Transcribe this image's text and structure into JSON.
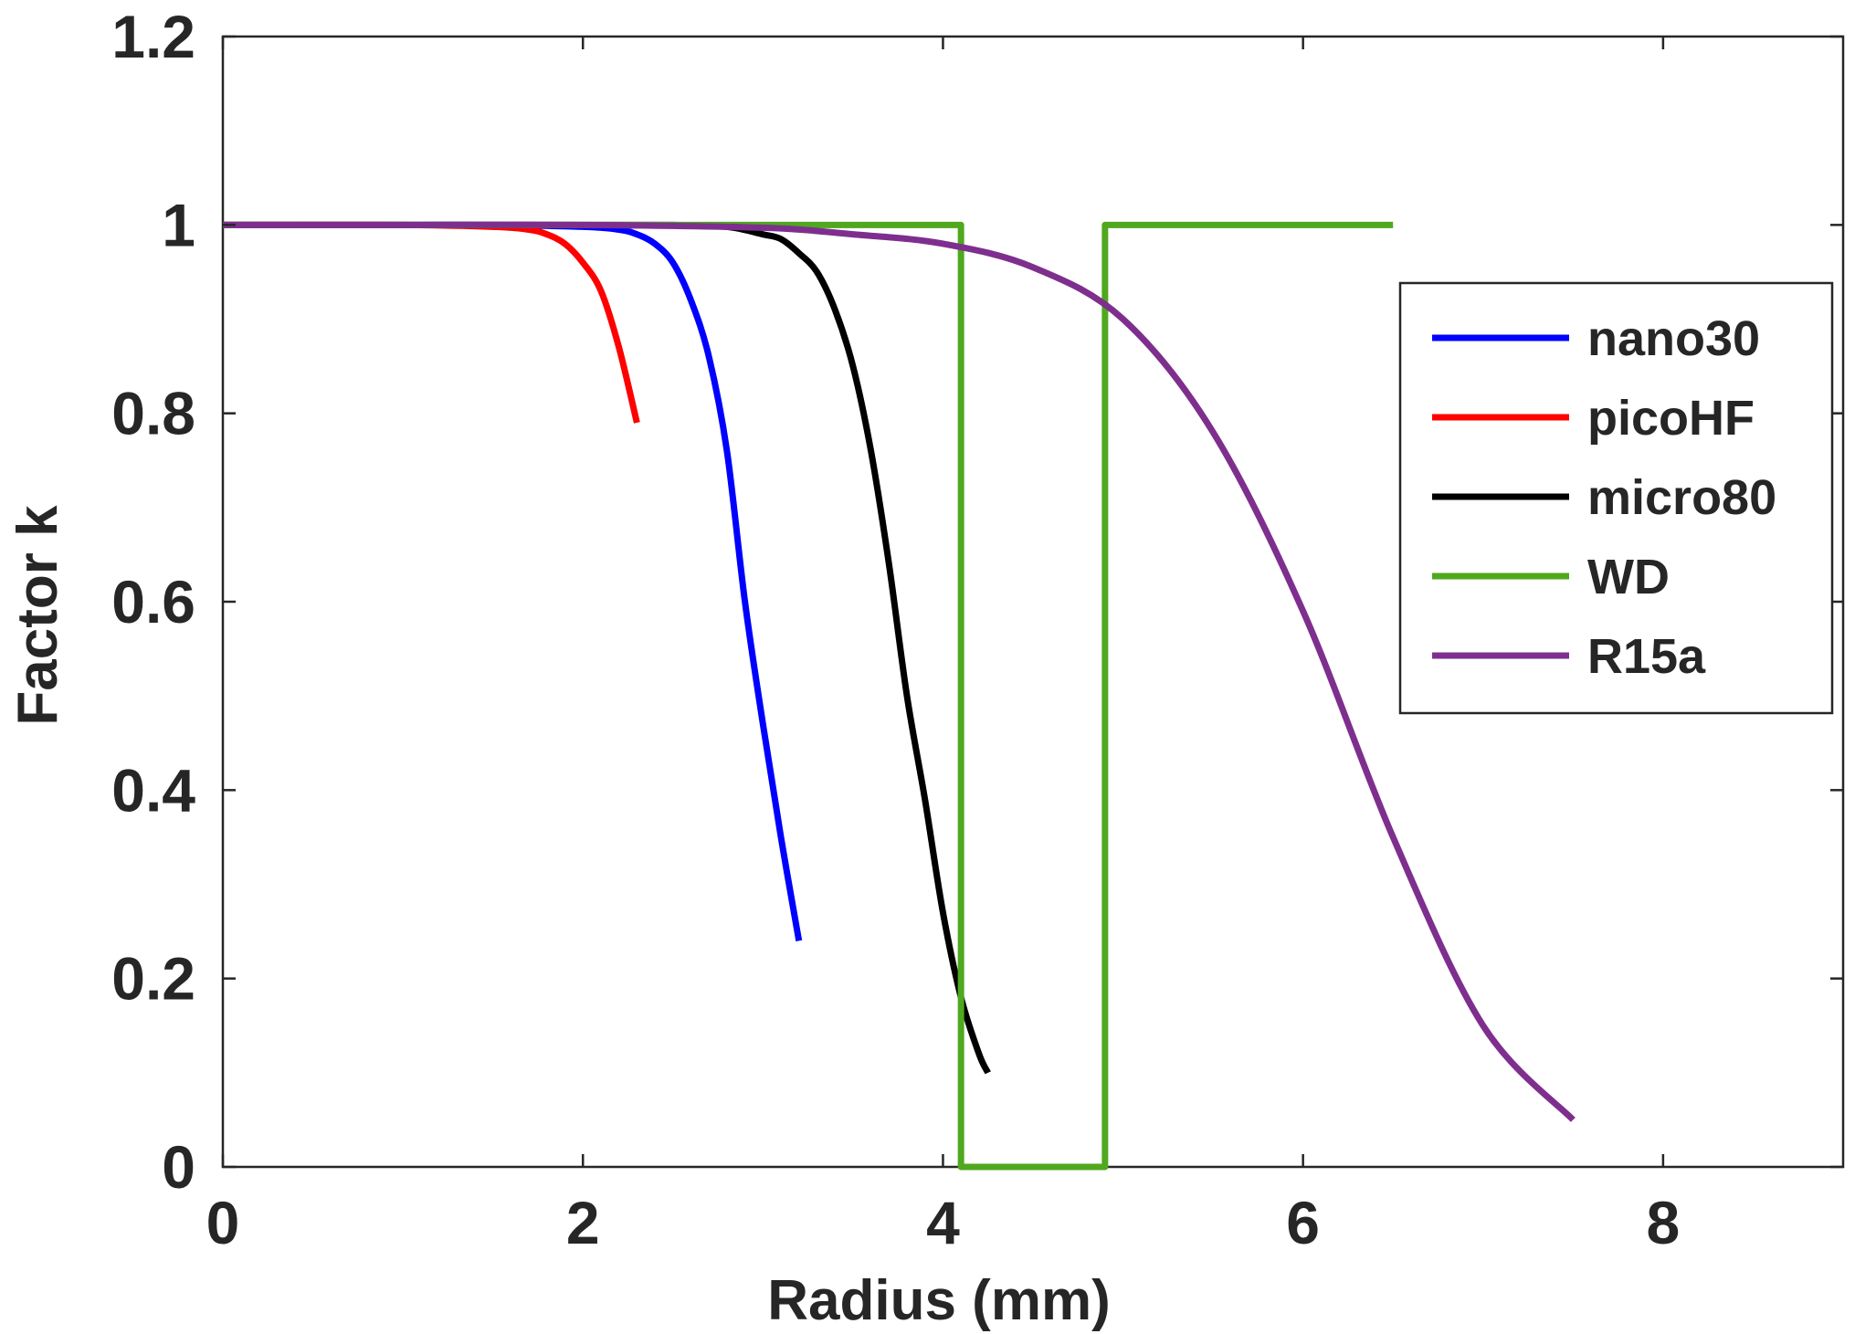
{
  "chart_data": {
    "type": "line",
    "title": "",
    "xlabel": "Radius (mm)",
    "ylabel": "Factor k",
    "xlim": [
      0,
      9
    ],
    "ylim": [
      0,
      1.2
    ],
    "xticks": [
      0,
      2,
      4,
      6,
      8
    ],
    "yticks": [
      0,
      0.2,
      0.4,
      0.6,
      0.8,
      1,
      1.2
    ],
    "xtick_labels": [
      "0",
      "2",
      "4",
      "6",
      "8"
    ],
    "ytick_labels": [
      "0",
      "0.2",
      "0.4",
      "0.6",
      "0.8",
      "1",
      "1.2"
    ],
    "grid": false,
    "legend_position": "right",
    "series": [
      {
        "name": "nano30",
        "color": "#0000ff",
        "x": [
          0,
          1.0,
          1.5,
          2.0,
          2.2,
          2.3,
          2.4,
          2.5,
          2.6,
          2.7,
          2.8,
          2.9,
          3.0,
          3.1,
          3.2
        ],
        "y": [
          1.0,
          1.0,
          1.0,
          0.998,
          0.995,
          0.99,
          0.98,
          0.96,
          0.92,
          0.86,
          0.76,
          0.6,
          0.47,
          0.35,
          0.24
        ]
      },
      {
        "name": "picoHF",
        "color": "#ff0000",
        "x": [
          0,
          1.0,
          1.5,
          1.7,
          1.8,
          1.9,
          2.0,
          2.1,
          2.2,
          2.3
        ],
        "y": [
          1.0,
          1.0,
          0.998,
          0.995,
          0.99,
          0.98,
          0.96,
          0.93,
          0.87,
          0.79
        ]
      },
      {
        "name": "micro80",
        "color": "#000000",
        "x": [
          0,
          1.5,
          2.5,
          2.8,
          3.0,
          3.1,
          3.2,
          3.3,
          3.4,
          3.5,
          3.6,
          3.7,
          3.8,
          3.9,
          4.0,
          4.1,
          4.2,
          4.25
        ],
        "y": [
          1.0,
          1.0,
          1.0,
          0.998,
          0.99,
          0.985,
          0.97,
          0.95,
          0.91,
          0.85,
          0.76,
          0.64,
          0.5,
          0.39,
          0.27,
          0.18,
          0.12,
          0.1
        ]
      },
      {
        "name": "WD",
        "color": "#4fa81e",
        "x": [
          0,
          4.1,
          4.1,
          4.9,
          4.9,
          6.5
        ],
        "y": [
          1.0,
          1.0,
          0,
          0,
          1.0,
          1.0
        ]
      },
      {
        "name": "R15a",
        "color": "#7e2f8e",
        "x": [
          0,
          1,
          2,
          3,
          3.5,
          4.0,
          4.5,
          5.0,
          5.5,
          6.0,
          6.5,
          7.0,
          7.5
        ],
        "y": [
          1.0,
          1.0,
          1.0,
          0.997,
          0.99,
          0.98,
          0.955,
          0.9,
          0.78,
          0.59,
          0.35,
          0.15,
          0.05
        ]
      }
    ]
  }
}
